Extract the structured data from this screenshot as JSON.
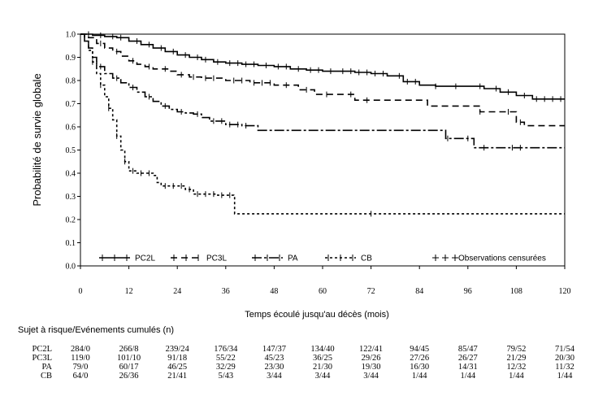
{
  "chart_data": {
    "type": "line",
    "xlabel": "Temps écoulé jusqu'au décès (mois)",
    "ylabel": "Probabilité de survie globale",
    "xlim": [
      0,
      120
    ],
    "ylim": [
      0,
      1
    ],
    "x_ticks": [
      0,
      12,
      24,
      36,
      48,
      60,
      72,
      84,
      96,
      108,
      120
    ],
    "y_ticks": [
      "0.0",
      "0.1",
      "0.2",
      "0.3",
      "0.4",
      "0.5",
      "0.6",
      "0.7",
      "0.8",
      "0.9",
      "1.0"
    ],
    "grid": false,
    "legend_position": "bottom",
    "censored_label": "Observations censurées",
    "series": [
      {
        "name": "PC2L",
        "dash": "solid",
        "points": [
          [
            0,
            1.0
          ],
          [
            3,
            0.995
          ],
          [
            6,
            0.99
          ],
          [
            9,
            0.985
          ],
          [
            12,
            0.97
          ],
          [
            15,
            0.955
          ],
          [
            18,
            0.94
          ],
          [
            21,
            0.925
          ],
          [
            24,
            0.91
          ],
          [
            27,
            0.9
          ],
          [
            30,
            0.89
          ],
          [
            33,
            0.88
          ],
          [
            36,
            0.875
          ],
          [
            40,
            0.87
          ],
          [
            44,
            0.865
          ],
          [
            48,
            0.86
          ],
          [
            52,
            0.85
          ],
          [
            56,
            0.845
          ],
          [
            60,
            0.84
          ],
          [
            64,
            0.84
          ],
          [
            68,
            0.835
          ],
          [
            72,
            0.83
          ],
          [
            76,
            0.82
          ],
          [
            80,
            0.795
          ],
          [
            84,
            0.78
          ],
          [
            88,
            0.775
          ],
          [
            96,
            0.775
          ],
          [
            100,
            0.765
          ],
          [
            104,
            0.75
          ],
          [
            108,
            0.735
          ],
          [
            112,
            0.72
          ],
          [
            120,
            0.72
          ]
        ],
        "censored": [
          2,
          5,
          8,
          10,
          14,
          17,
          20,
          23,
          26,
          29,
          31,
          34,
          37,
          39,
          41,
          43,
          46,
          49,
          51,
          54,
          57,
          59,
          62,
          65,
          67,
          69,
          71,
          73,
          75,
          79,
          81,
          83,
          88,
          93,
          99,
          103,
          106,
          110,
          113,
          115,
          117,
          119
        ]
      },
      {
        "name": "PC3L",
        "dash": "dashed",
        "points": [
          [
            0,
            1.0
          ],
          [
            2,
            0.985
          ],
          [
            4,
            0.96
          ],
          [
            6,
            0.94
          ],
          [
            8,
            0.925
          ],
          [
            10,
            0.905
          ],
          [
            12,
            0.885
          ],
          [
            14,
            0.87
          ],
          [
            16,
            0.86
          ],
          [
            18,
            0.85
          ],
          [
            22,
            0.84
          ],
          [
            24,
            0.825
          ],
          [
            27,
            0.815
          ],
          [
            30,
            0.81
          ],
          [
            36,
            0.8
          ],
          [
            42,
            0.79
          ],
          [
            48,
            0.78
          ],
          [
            54,
            0.76
          ],
          [
            58,
            0.74
          ],
          [
            64,
            0.74
          ],
          [
            68,
            0.715
          ],
          [
            80,
            0.715
          ],
          [
            86,
            0.69
          ],
          [
            96,
            0.69
          ],
          [
            99,
            0.665
          ],
          [
            106,
            0.665
          ],
          [
            108,
            0.62
          ],
          [
            110,
            0.605
          ],
          [
            120,
            0.605
          ]
        ],
        "censored": [
          5,
          9,
          13,
          17,
          21,
          25,
          28,
          31,
          33,
          38,
          40,
          43,
          45,
          47,
          51,
          56,
          61,
          67,
          71,
          99,
          106,
          109
        ]
      },
      {
        "name": "PA",
        "dash": "dashdot",
        "points": [
          [
            0,
            1.0
          ],
          [
            1,
            0.97
          ],
          [
            2,
            0.94
          ],
          [
            3,
            0.9
          ],
          [
            4,
            0.86
          ],
          [
            6,
            0.83
          ],
          [
            8,
            0.81
          ],
          [
            10,
            0.79
          ],
          [
            12,
            0.77
          ],
          [
            14,
            0.75
          ],
          [
            16,
            0.73
          ],
          [
            18,
            0.71
          ],
          [
            20,
            0.69
          ],
          [
            22,
            0.675
          ],
          [
            24,
            0.665
          ],
          [
            26,
            0.66
          ],
          [
            28,
            0.655
          ],
          [
            30,
            0.64
          ],
          [
            32,
            0.625
          ],
          [
            36,
            0.61
          ],
          [
            40,
            0.605
          ],
          [
            44,
            0.585
          ],
          [
            60,
            0.585
          ],
          [
            75,
            0.585
          ],
          [
            90,
            0.585
          ],
          [
            90.5,
            0.55
          ],
          [
            97,
            0.55
          ],
          [
            97.5,
            0.51
          ],
          [
            120,
            0.51
          ]
        ],
        "censored": [
          5,
          9,
          13,
          17,
          21,
          25,
          29,
          33,
          35,
          37,
          39,
          41,
          91,
          96,
          100,
          107,
          109
        ]
      },
      {
        "name": "CB",
        "dash": "dashdotdot",
        "points": [
          [
            0,
            1.0
          ],
          [
            1,
            0.97
          ],
          [
            2,
            0.93
          ],
          [
            3,
            0.88
          ],
          [
            4,
            0.83
          ],
          [
            5,
            0.78
          ],
          [
            6,
            0.73
          ],
          [
            7,
            0.68
          ],
          [
            8,
            0.63
          ],
          [
            9,
            0.56
          ],
          [
            10,
            0.5
          ],
          [
            11,
            0.45
          ],
          [
            12,
            0.41
          ],
          [
            14,
            0.4
          ],
          [
            18,
            0.39
          ],
          [
            19,
            0.36
          ],
          [
            20,
            0.345
          ],
          [
            26,
            0.33
          ],
          [
            28,
            0.31
          ],
          [
            34,
            0.305
          ],
          [
            38,
            0.3
          ],
          [
            38.2,
            0.225
          ],
          [
            48,
            0.225
          ],
          [
            72,
            0.225
          ],
          [
            120,
            0.225
          ]
        ],
        "censored": [
          3,
          5,
          7,
          9,
          11,
          13,
          15,
          17,
          21,
          23,
          25,
          27,
          29,
          31,
          33,
          35,
          37,
          72
        ]
      }
    ],
    "risk_table": {
      "title": "Sujet à risque/Evénements cumulés (n)",
      "rows": [
        {
          "label": "PC2L",
          "values": [
            "284/0",
            "266/8",
            "239/24",
            "176/34",
            "147/37",
            "134/40",
            "122/41",
            "94/45",
            "85/47",
            "79/52",
            "71/54"
          ]
        },
        {
          "label": "PC3L",
          "values": [
            "119/0",
            "101/10",
            "91/18",
            "55/22",
            "45/23",
            "36/25",
            "29/26",
            "27/26",
            "26/27",
            "21/29",
            "20/30"
          ]
        },
        {
          "label": "PA",
          "values": [
            "79/0",
            "60/17",
            "46/25",
            "32/29",
            "23/30",
            "21/30",
            "19/30",
            "16/30",
            "14/31",
            "12/32",
            "11/32"
          ]
        },
        {
          "label": "CB",
          "values": [
            "64/0",
            "26/36",
            "21/41",
            "5/43",
            "3/44",
            "3/44",
            "3/44",
            "1/44",
            "1/44",
            "1/44",
            "1/44"
          ]
        }
      ]
    }
  }
}
